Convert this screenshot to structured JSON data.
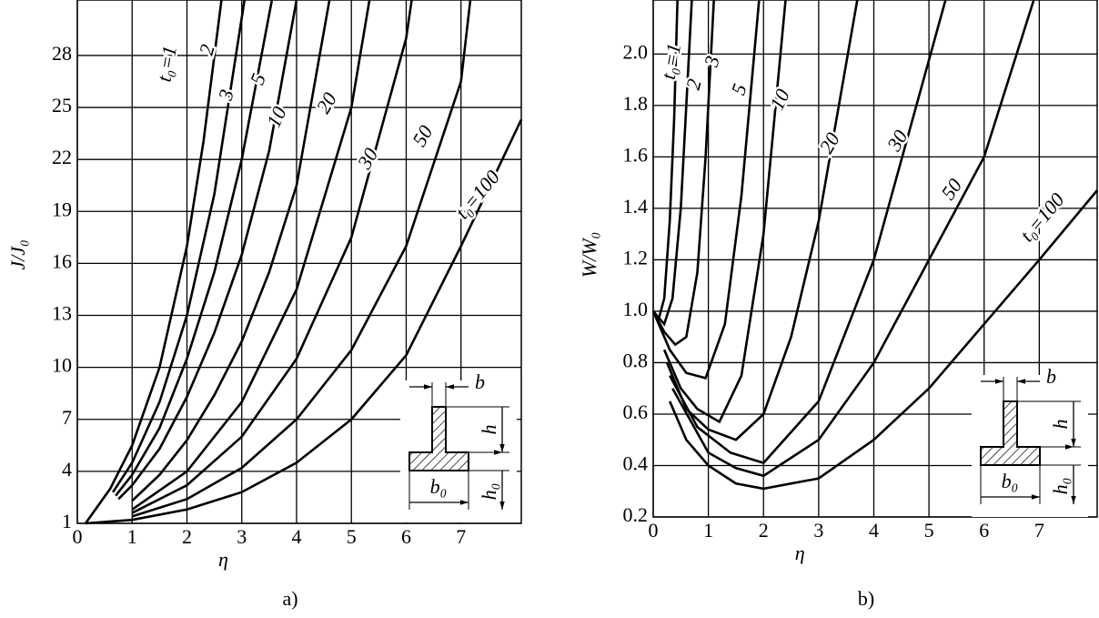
{
  "chart_data": [
    {
      "type": "line",
      "panel_label": "a)",
      "xlabel": "η",
      "ylabel": "J/J₀",
      "color": "#000000",
      "grid": true,
      "xlim": [
        0,
        8.1
      ],
      "ylim": [
        1,
        31.2
      ],
      "xticks": [
        0,
        1,
        2,
        3,
        4,
        5,
        6,
        7
      ],
      "yticks": [
        1,
        4,
        7,
        10,
        13,
        16,
        19,
        22,
        25,
        28
      ],
      "inset_labels": [
        "b",
        "h",
        "b₀",
        "h₀"
      ],
      "series": [
        {
          "name": "t₀=1",
          "x": [
            0.15,
            0.6,
            1,
            1.5,
            2,
            2.3,
            2.63
          ],
          "values": [
            1,
            3,
            5.5,
            10,
            17,
            23,
            31.2
          ]
        },
        {
          "name": "2",
          "x": [
            0.65,
            1,
            1.5,
            2,
            2.5,
            3.05
          ],
          "values": [
            2.8,
            4.5,
            8,
            13,
            20,
            31.2
          ]
        },
        {
          "name": "3",
          "x": [
            0.7,
            1,
            1.5,
            2,
            2.5,
            3,
            3.55
          ],
          "values": [
            2.6,
            3.8,
            6.5,
            10.5,
            15.5,
            22,
            31.2
          ]
        },
        {
          "name": "5",
          "x": [
            0.75,
            1,
            1.5,
            2,
            2.5,
            3,
            3.5,
            4
          ],
          "values": [
            2.4,
            3.2,
            5.3,
            8.3,
            12,
            16.5,
            22.5,
            31.2
          ]
        },
        {
          "name": "10",
          "x": [
            1,
            1.5,
            2,
            2.5,
            3,
            3.5,
            4,
            4.6
          ],
          "values": [
            2.3,
            3.8,
            5.8,
            8.4,
            11.5,
            15.5,
            20.5,
            31.2
          ]
        },
        {
          "name": "20",
          "x": [
            1,
            2,
            3,
            4,
            5,
            5.33
          ],
          "values": [
            1.8,
            4,
            8,
            14.5,
            25,
            31.2
          ]
        },
        {
          "name": "30",
          "x": [
            1,
            2,
            3,
            4,
            5,
            6,
            6.1
          ],
          "values": [
            1.6,
            3.2,
            6,
            10.5,
            17.5,
            29,
            31.2
          ]
        },
        {
          "name": "50",
          "x": [
            1,
            2,
            3,
            4,
            5,
            6,
            7,
            7.17
          ],
          "values": [
            1.4,
            2.4,
            4.2,
            7,
            11,
            17,
            26.5,
            31.2
          ]
        },
        {
          "name": "t₀=100",
          "x": [
            0.15,
            1,
            2,
            3,
            4,
            5,
            6,
            7,
            8.1
          ],
          "values": [
            1,
            1.2,
            1.8,
            2.8,
            4.5,
            7,
            10.7,
            17,
            24.3
          ]
        }
      ]
    },
    {
      "type": "line",
      "panel_label": "b)",
      "xlabel": "η",
      "ylabel": "W/W₀",
      "color": "#000000",
      "grid": true,
      "xlim": [
        0,
        8.05
      ],
      "ylim": [
        0.2,
        2.21
      ],
      "xticks": [
        0,
        1,
        2,
        3,
        4,
        5,
        6,
        7
      ],
      "yticks": [
        0.2,
        0.4,
        0.6,
        0.8,
        {
          "value": 1,
          "label": "1.0"
        },
        1.2,
        1.4,
        1.6,
        1.8,
        {
          "value": 2,
          "label": "2.0"
        }
      ],
      "inset_labels": [
        "b",
        "h",
        "b₀",
        "h₀"
      ],
      "series": [
        {
          "name": "t₀=1",
          "x": [
            0,
            0.1,
            0.2,
            0.3,
            0.38,
            0.44
          ],
          "values": [
            1,
            0.97,
            1.05,
            1.35,
            1.75,
            2.21
          ]
        },
        {
          "name": "2",
          "x": [
            0,
            0.2,
            0.35,
            0.5,
            0.6,
            0.7
          ],
          "values": [
            1,
            0.95,
            1.05,
            1.4,
            1.8,
            2.21
          ]
        },
        {
          "name": "3",
          "x": [
            0,
            0.2,
            0.4,
            0.6,
            0.8,
            0.95,
            1.1
          ],
          "values": [
            1,
            0.92,
            0.87,
            0.9,
            1.15,
            1.6,
            2.21
          ]
        },
        {
          "name": "5",
          "x": [
            0,
            0.3,
            0.6,
            0.95,
            1.3,
            1.6,
            1.92
          ],
          "values": [
            1,
            0.85,
            0.76,
            0.74,
            0.95,
            1.45,
            2.21
          ]
        },
        {
          "name": "10",
          "x": [
            0.2,
            0.5,
            0.8,
            1.2,
            1.6,
            2,
            2.4
          ],
          "values": [
            0.85,
            0.7,
            0.62,
            0.57,
            0.75,
            1.3,
            2.21
          ]
        },
        {
          "name": "20",
          "x": [
            0.25,
            0.6,
            1,
            1.5,
            2,
            2.5,
            3,
            3.7
          ],
          "values": [
            0.8,
            0.62,
            0.54,
            0.5,
            0.6,
            0.9,
            1.35,
            2.21
          ]
        },
        {
          "name": "30",
          "x": [
            0.3,
            0.8,
            1.4,
            2,
            3,
            4,
            5.3
          ],
          "values": [
            0.75,
            0.55,
            0.45,
            0.41,
            0.65,
            1.2,
            2.21
          ]
        },
        {
          "name": "50",
          "x": [
            0.35,
            1,
            1.5,
            2,
            3,
            4,
            5,
            6,
            6.9
          ],
          "values": [
            0.7,
            0.45,
            0.39,
            0.36,
            0.5,
            0.8,
            1.2,
            1.6,
            2.21
          ]
        },
        {
          "name": "t₀=100",
          "x": [
            0.3,
            0.6,
            1,
            1.5,
            2,
            3,
            4,
            5,
            6,
            7,
            8.05
          ],
          "values": [
            0.65,
            0.5,
            0.4,
            0.33,
            0.31,
            0.35,
            0.5,
            0.7,
            0.95,
            1.2,
            1.47
          ]
        }
      ]
    }
  ]
}
